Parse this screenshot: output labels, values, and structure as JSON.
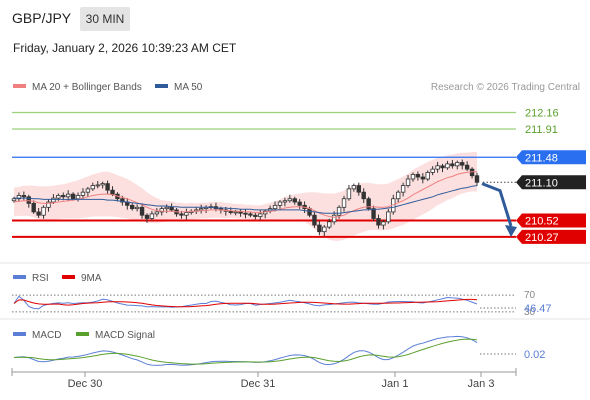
{
  "header": {
    "pair": "GBP/JPY",
    "timeframe": "30 MIN",
    "datetime": "Friday, January 2, 2026 10:39:23 AM CET"
  },
  "main_legend": {
    "ma20_label": "MA 20 + Bollinger Bands",
    "ma20_color": "#f08080",
    "ma50_label": "MA 50",
    "ma50_color": "#2f5b9a",
    "watermark": "Research © 2026 Trading Central"
  },
  "rsi_legend": {
    "rsi_label": "RSI",
    "rsi_color": "#5b7fd6",
    "ma_label": "9MA",
    "ma_color": "#e00000"
  },
  "macd_legend": {
    "macd_label": "MACD",
    "macd_color": "#5b7fd6",
    "signal_label": "MACD Signal",
    "signal_color": "#5aa02c"
  },
  "chart_data": [
    {
      "type": "candlestick",
      "ylim": [
        209.95,
        212.35
      ],
      "x_ticks": [
        "Dec 30",
        "Dec 31",
        "Jan 1",
        "Jan 3"
      ],
      "levels": [
        {
          "value": 212.16,
          "label": "212.16",
          "role": "resistance",
          "color": "#9bd17a"
        },
        {
          "value": 211.91,
          "label": "211.91",
          "role": "resistance",
          "color": "#9bd17a"
        },
        {
          "value": 211.48,
          "label": "211.48",
          "role": "pivot",
          "color": "#2a6ff0"
        },
        {
          "value": 211.1,
          "label": "211.10",
          "role": "last",
          "color": "#222222"
        },
        {
          "value": 210.52,
          "label": "210.52",
          "role": "support",
          "color": "#e00000"
        },
        {
          "value": 210.27,
          "label": "210.27",
          "role": "support",
          "color": "#e00000"
        }
      ],
      "arrow": {
        "from": 211.08,
        "to": 210.3,
        "color": "#2f5b9a"
      },
      "close": [
        210.85,
        210.9,
        210.88,
        210.78,
        210.65,
        210.6,
        210.72,
        210.8,
        210.86,
        210.9,
        210.88,
        210.92,
        210.85,
        210.9,
        210.95,
        211.0,
        211.05,
        211.06,
        211.08,
        210.98,
        210.92,
        210.85,
        210.8,
        210.75,
        210.7,
        210.72,
        210.6,
        210.55,
        210.62,
        210.65,
        210.7,
        210.72,
        210.68,
        210.62,
        210.6,
        210.64,
        210.66,
        210.68,
        210.7,
        210.72,
        210.73,
        210.7,
        210.68,
        210.66,
        210.64,
        210.65,
        210.63,
        210.62,
        210.6,
        210.58,
        210.62,
        210.66,
        210.7,
        210.75,
        210.8,
        210.82,
        210.85,
        210.8,
        210.75,
        210.7,
        210.6,
        210.45,
        210.35,
        210.42,
        210.5,
        210.6,
        210.72,
        210.85,
        211.0,
        211.05,
        210.95,
        210.85,
        210.7,
        210.55,
        210.45,
        210.5,
        210.65,
        210.85,
        210.95,
        211.05,
        211.15,
        211.22,
        211.18,
        211.15,
        211.25,
        211.3,
        211.35,
        211.32,
        211.38,
        211.35,
        211.4,
        211.36,
        211.3,
        211.2,
        211.1
      ],
      "ma20": [
        210.8,
        210.81,
        210.82,
        210.82,
        210.81,
        210.79,
        210.78,
        210.78,
        210.79,
        210.8,
        210.81,
        210.82,
        210.83,
        210.84,
        210.86,
        210.88,
        210.9,
        210.91,
        210.92,
        210.92,
        210.91,
        210.89,
        210.87,
        210.85,
        210.82,
        210.79,
        210.76,
        210.72,
        210.69,
        210.67,
        210.66,
        210.66,
        210.66,
        210.65,
        210.65,
        210.65,
        210.66,
        210.66,
        210.67,
        210.67,
        210.68,
        210.68,
        210.68,
        210.67,
        210.67,
        210.66,
        210.66,
        210.65,
        210.65,
        210.64,
        210.64,
        210.65,
        210.66,
        210.67,
        210.69,
        210.71,
        210.72,
        210.73,
        210.73,
        210.72,
        210.7,
        210.67,
        210.63,
        210.6,
        210.58,
        210.57,
        210.58,
        210.6,
        210.64,
        210.67,
        210.7,
        210.72,
        210.73,
        210.73,
        210.72,
        210.72,
        210.73,
        210.76,
        210.79,
        210.82,
        210.86,
        210.91,
        210.95,
        210.99,
        211.03,
        211.07,
        211.11,
        211.14,
        211.17,
        211.19,
        211.22,
        211.24,
        211.25,
        211.26,
        211.26
      ],
      "ma50": [
        210.86,
        210.86,
        210.86,
        210.86,
        210.85,
        210.85,
        210.84,
        210.84,
        210.84,
        210.84,
        210.84,
        210.84,
        210.84,
        210.84,
        210.84,
        210.84,
        210.84,
        210.84,
        210.84,
        210.83,
        210.83,
        210.82,
        210.81,
        210.8,
        210.79,
        210.78,
        210.77,
        210.76,
        210.75,
        210.74,
        210.74,
        210.74,
        210.73,
        210.73,
        210.72,
        210.72,
        210.72,
        210.72,
        210.72,
        210.72,
        210.72,
        210.71,
        210.71,
        210.71,
        210.7,
        210.7,
        210.69,
        210.69,
        210.69,
        210.68,
        210.68,
        210.68,
        210.68,
        210.68,
        210.68,
        210.68,
        210.68,
        210.68,
        210.68,
        210.67,
        210.66,
        210.65,
        210.64,
        210.63,
        210.63,
        210.63,
        210.63,
        210.64,
        210.65,
        210.66,
        210.67,
        210.68,
        210.68,
        210.69,
        210.69,
        210.7,
        210.71,
        210.72,
        210.74,
        210.76,
        210.78,
        210.8,
        210.82,
        210.84,
        210.86,
        210.88,
        210.91,
        210.93,
        210.95,
        210.97,
        210.99,
        211.01,
        211.02,
        211.04,
        211.05
      ],
      "band_width": [
        0.22,
        0.22,
        0.23,
        0.23,
        0.24,
        0.25,
        0.26,
        0.26,
        0.26,
        0.26,
        0.26,
        0.27,
        0.28,
        0.29,
        0.3,
        0.31,
        0.32,
        0.33,
        0.34,
        0.34,
        0.33,
        0.32,
        0.31,
        0.3,
        0.29,
        0.27,
        0.25,
        0.23,
        0.21,
        0.19,
        0.17,
        0.16,
        0.15,
        0.14,
        0.14,
        0.13,
        0.13,
        0.12,
        0.12,
        0.12,
        0.12,
        0.12,
        0.12,
        0.12,
        0.11,
        0.11,
        0.11,
        0.11,
        0.11,
        0.11,
        0.11,
        0.12,
        0.13,
        0.14,
        0.15,
        0.17,
        0.18,
        0.19,
        0.2,
        0.22,
        0.25,
        0.28,
        0.31,
        0.33,
        0.35,
        0.36,
        0.37,
        0.37,
        0.38,
        0.38,
        0.38,
        0.37,
        0.36,
        0.35,
        0.35,
        0.35,
        0.35,
        0.36,
        0.36,
        0.37,
        0.37,
        0.38,
        0.38,
        0.38,
        0.38,
        0.37,
        0.36,
        0.35,
        0.34,
        0.33,
        0.32,
        0.31,
        0.3,
        0.3,
        0.3
      ]
    },
    {
      "type": "line",
      "name": "RSI",
      "levels": [
        {
          "value": 70,
          "label": "70"
        },
        {
          "value": 30,
          "label": "30"
        }
      ],
      "last_value": "46.47",
      "ylim": [
        20,
        80
      ]
    },
    {
      "type": "line",
      "name": "MACD",
      "last_value": "0.02",
      "ylim": [
        -0.12,
        0.12
      ]
    }
  ]
}
